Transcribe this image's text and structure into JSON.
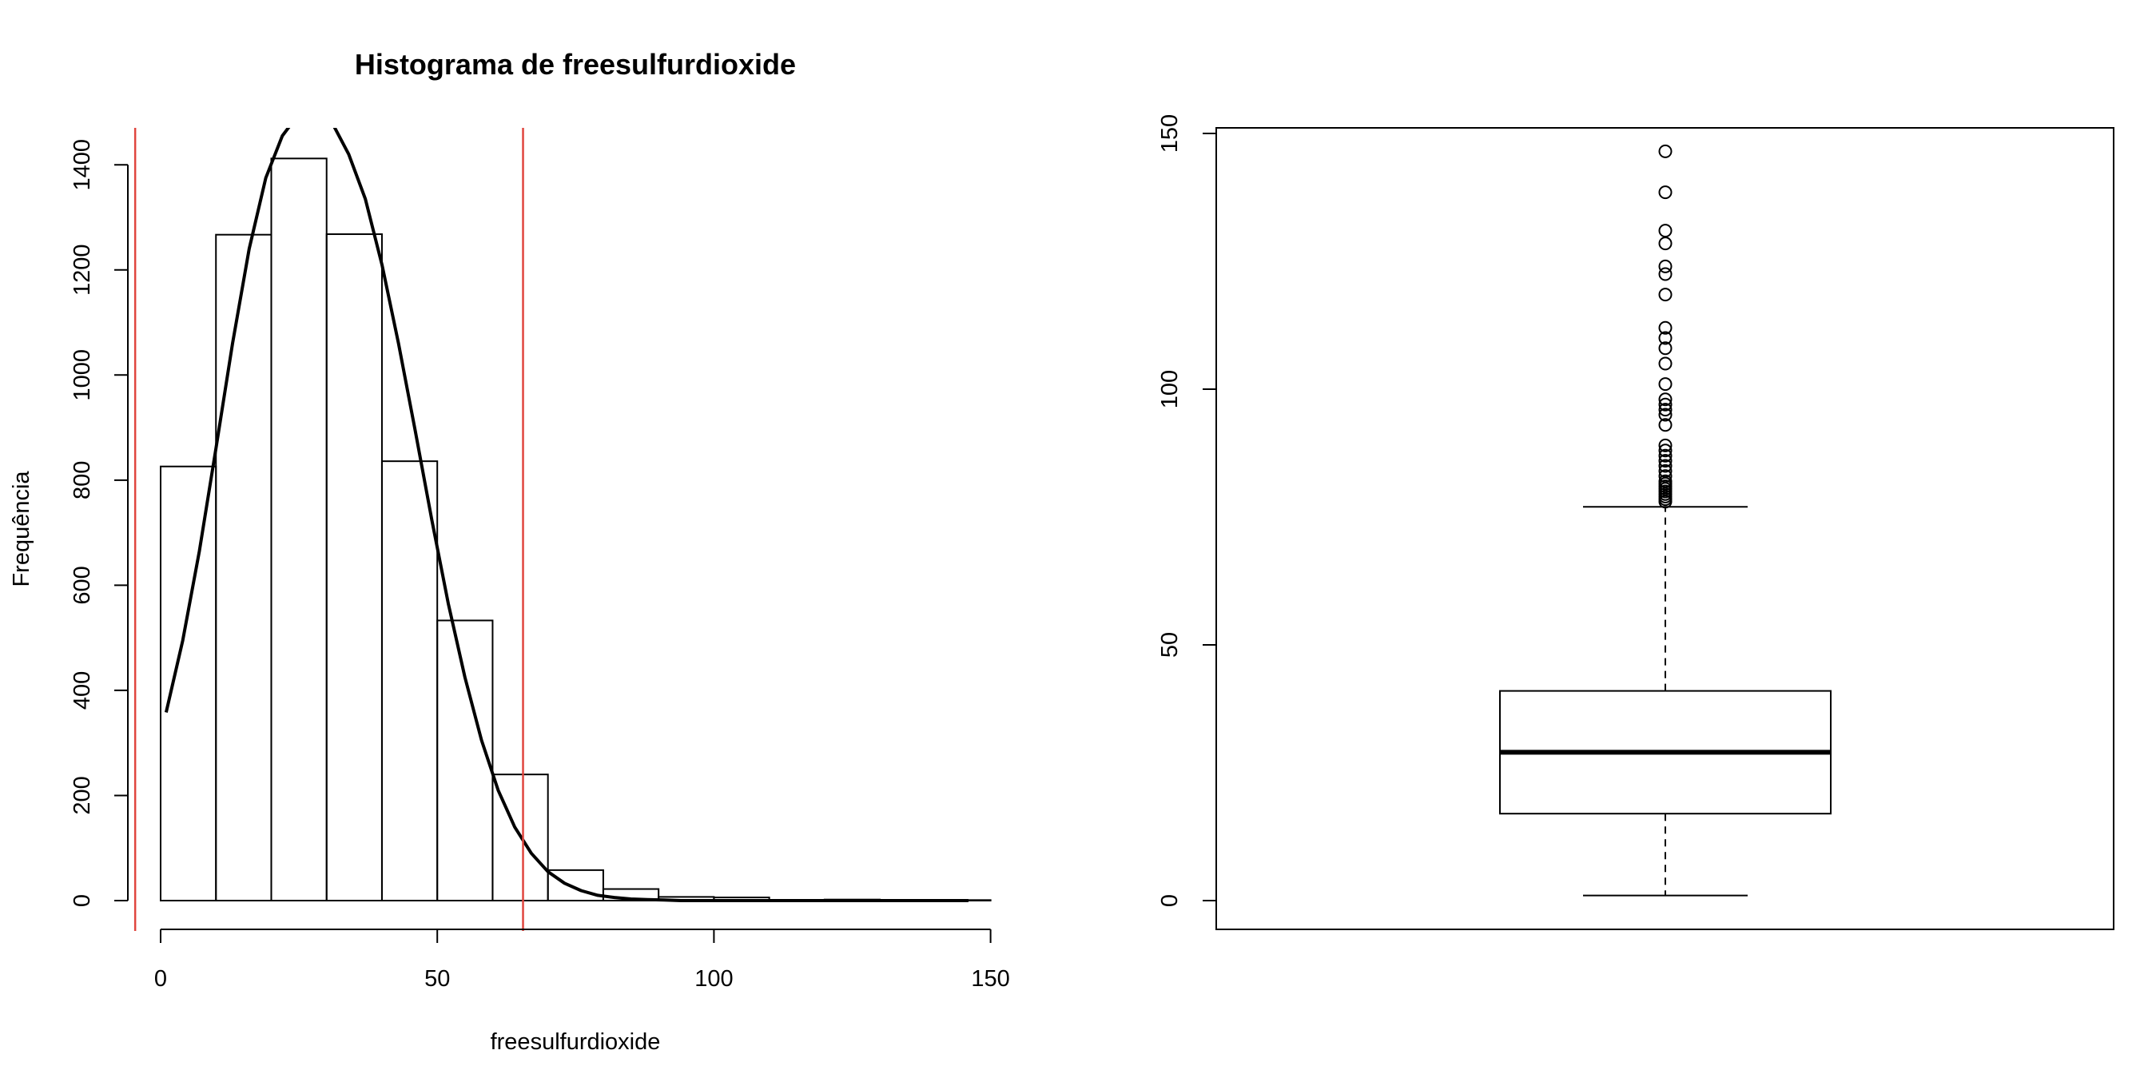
{
  "chart_data": [
    {
      "type": "histogram",
      "title": "Histograma de  freesulfurdioxide",
      "xlabel": "freesulfurdioxide",
      "ylabel": "Frequência",
      "xlim": [
        0,
        150
      ],
      "ylim": [
        0,
        1450
      ],
      "x_ticks": [
        0,
        50,
        100,
        150
      ],
      "y_ticks": [
        0,
        200,
        400,
        600,
        800,
        1000,
        1200,
        1400
      ],
      "bin_edges": [
        0,
        10,
        20,
        30,
        40,
        50,
        60,
        70,
        80,
        90,
        100,
        110,
        120,
        130,
        140,
        150
      ],
      "counts": [
        826,
        1267,
        1412,
        1268,
        836,
        533,
        240,
        58,
        22,
        7,
        6,
        1,
        2,
        1,
        1
      ],
      "density_curve": {
        "x": [
          1,
          4,
          7,
          10,
          13,
          16,
          19,
          22,
          25,
          28,
          31,
          34,
          37,
          40,
          43,
          46,
          49,
          52,
          55,
          58,
          61,
          64,
          67,
          70,
          73,
          76,
          79,
          82,
          85,
          88,
          91,
          94,
          97,
          100,
          110,
          120,
          130,
          140,
          146
        ],
        "y": [
          358,
          495,
          665,
          860,
          1060,
          1240,
          1375,
          1455,
          1497,
          1500,
          1480,
          1420,
          1335,
          1210,
          1060,
          895,
          725,
          565,
          425,
          305,
          210,
          140,
          90,
          55,
          33,
          19,
          10,
          6,
          3,
          2,
          1,
          0,
          0,
          0,
          0,
          0,
          0,
          0,
          0
        ],
        "color": "#000000"
      },
      "vertical_lines": {
        "x": [
          -4.6,
          65.5
        ],
        "color": "#e0453e"
      }
    },
    {
      "type": "boxplot",
      "ylim": [
        -5,
        152
      ],
      "y_ticks": [
        0,
        50,
        100,
        150
      ],
      "stats": {
        "lower_whisker": 1,
        "q1": 17,
        "median": 29,
        "q3": 41,
        "upper_whisker": 77
      },
      "outliers": [
        78,
        78.5,
        79,
        79.5,
        80,
        80.5,
        81,
        81.5,
        82,
        83,
        84,
        85,
        86,
        87,
        88,
        89,
        93,
        95,
        96,
        97,
        98,
        101,
        105,
        108,
        110,
        112,
        118.5,
        122.5,
        124,
        128.5,
        131,
        138.5,
        146.5
      ]
    }
  ]
}
